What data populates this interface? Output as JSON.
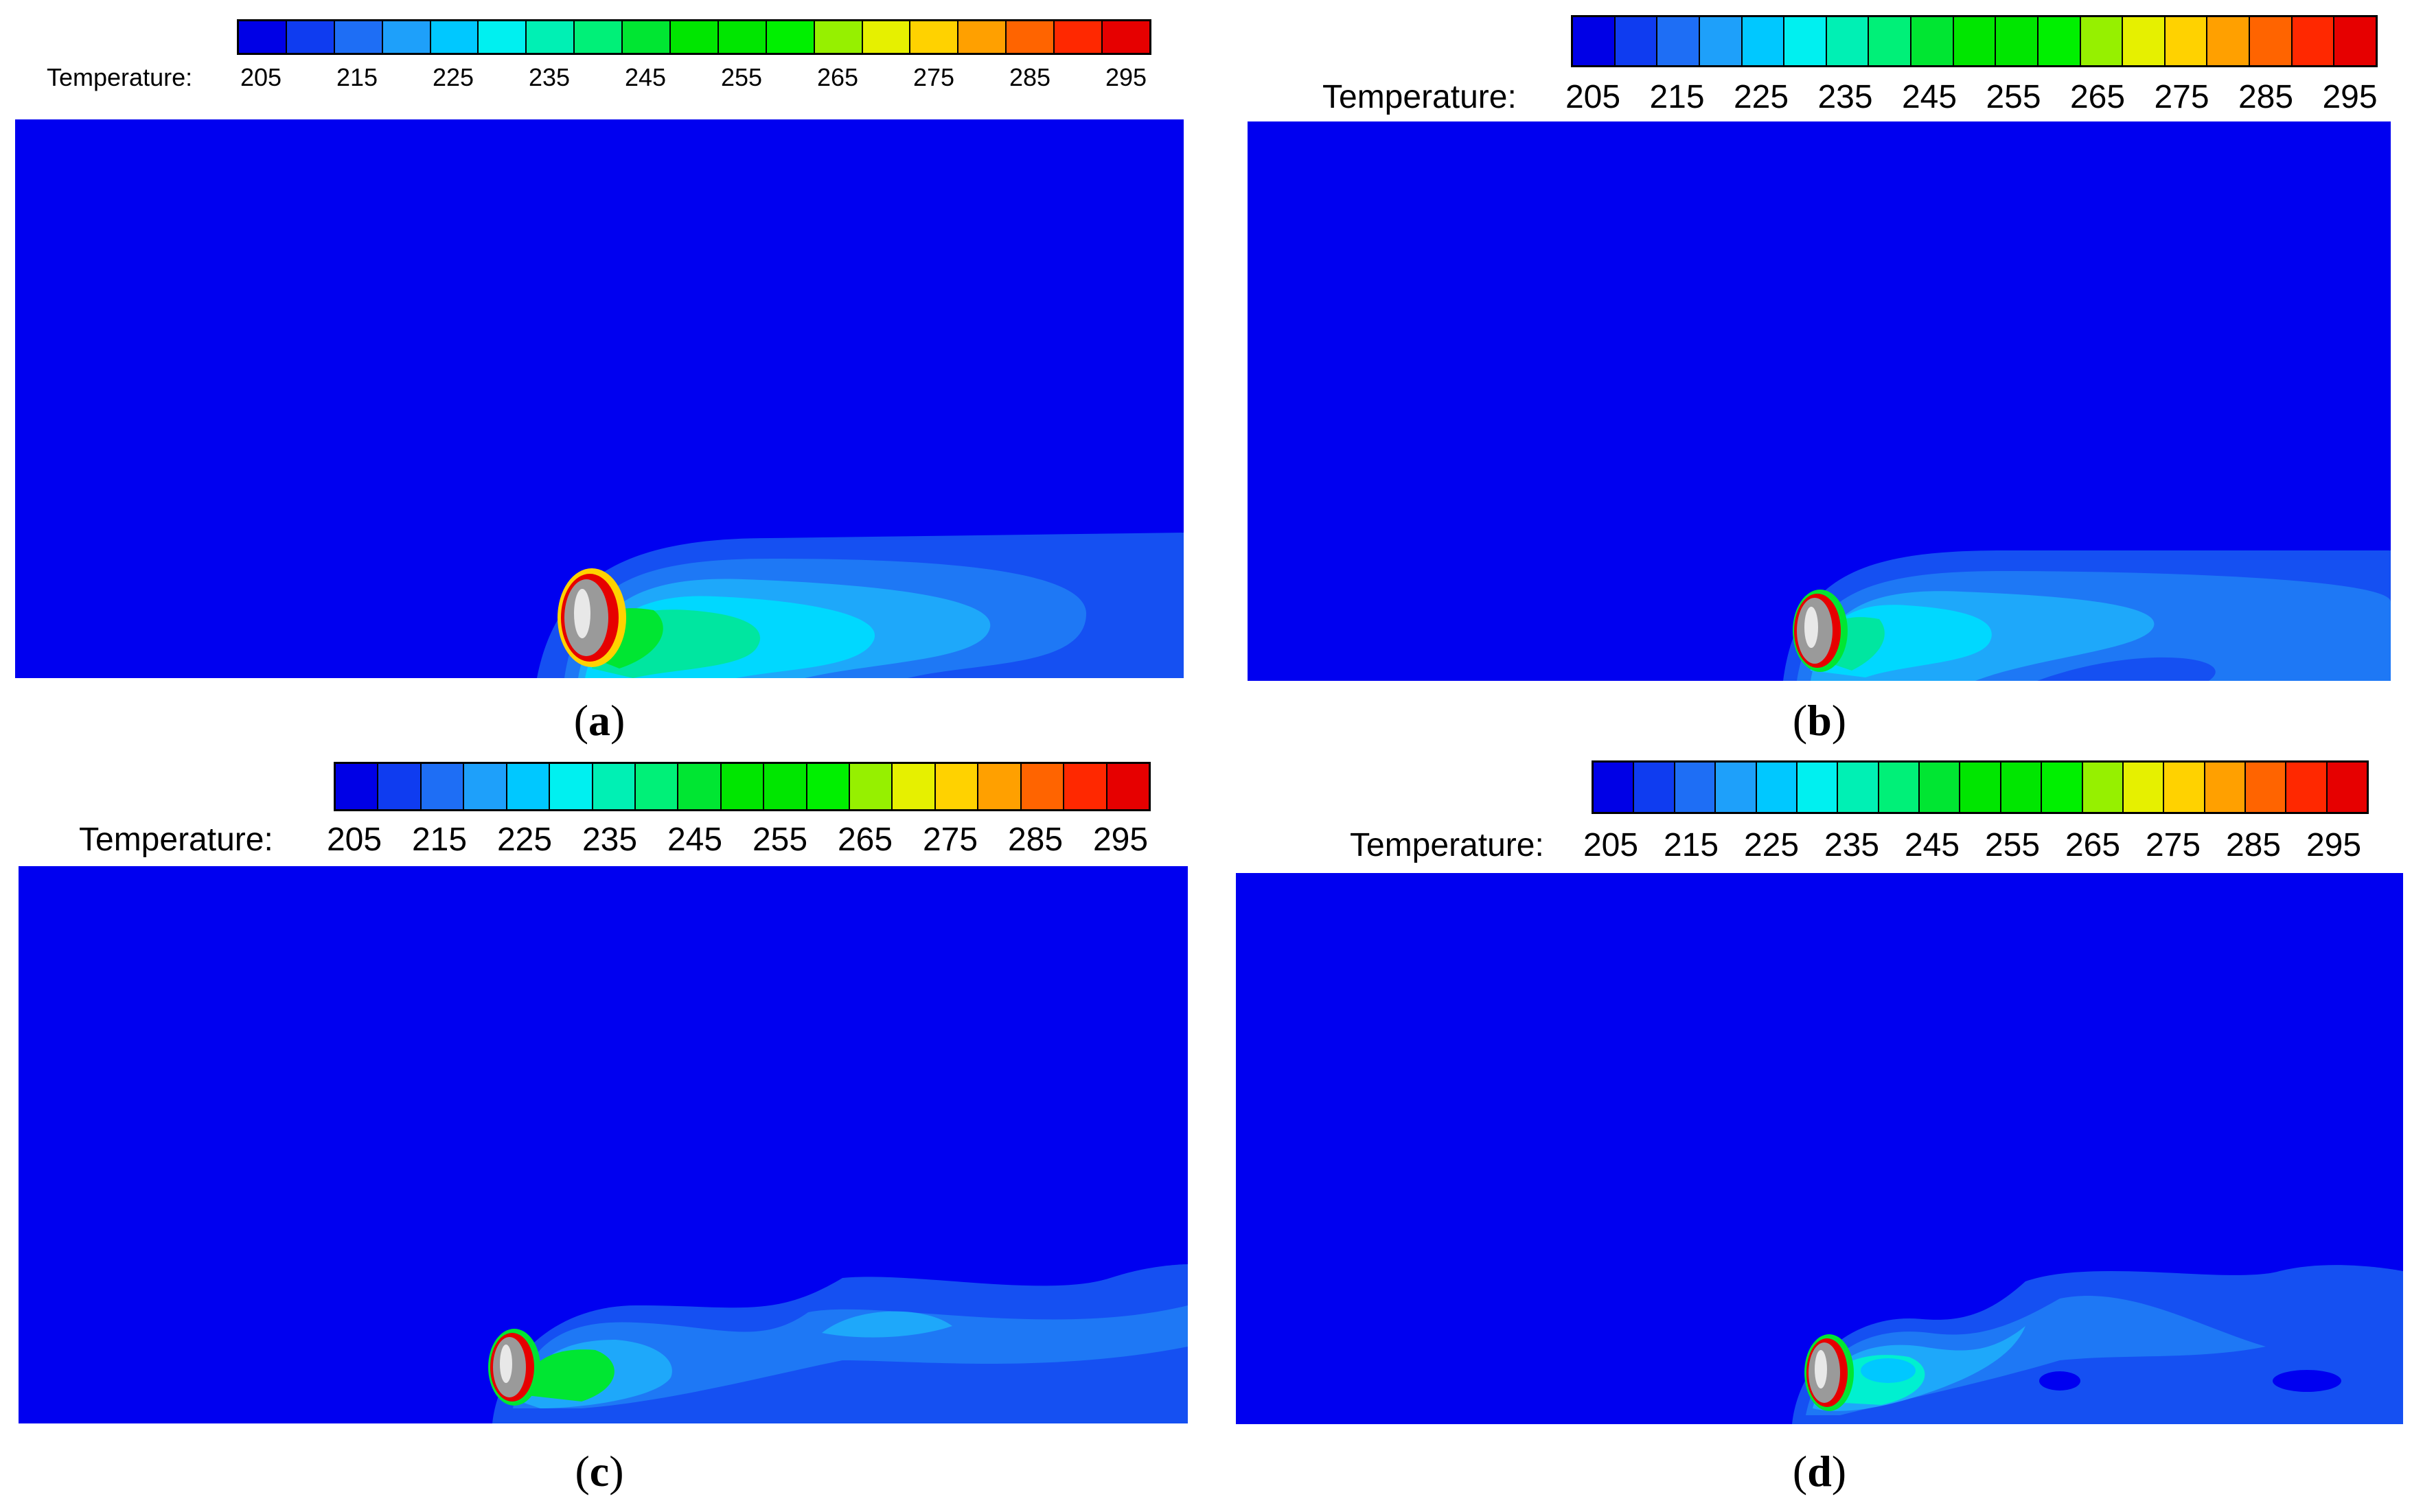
{
  "legend": {
    "label": "Temperature:",
    "ticks": [
      "205",
      "215",
      "225",
      "235",
      "245",
      "255",
      "265",
      "275",
      "285",
      "295"
    ],
    "colors": [
      "#0000e6",
      "#0f3cf0",
      "#1e6ef5",
      "#1ea0fa",
      "#00c8ff",
      "#00f0f0",
      "#00f0b4",
      "#00f078",
      "#00e632",
      "#00e600",
      "#00e600",
      "#00f000",
      "#96f000",
      "#e6f000",
      "#ffd200",
      "#ffa000",
      "#ff6400",
      "#ff2800",
      "#e60000"
    ]
  },
  "colors": {
    "background": "#0000f0",
    "body_edge": "#e60000",
    "body_metal": "#9a9a9a"
  },
  "panels": [
    {
      "letter": "a",
      "open": "(",
      "close": ")"
    },
    {
      "letter": "b",
      "open": "(",
      "close": ")"
    },
    {
      "letter": "c",
      "open": "(",
      "close": ")"
    },
    {
      "letter": "d",
      "open": "(",
      "close": ")"
    }
  ]
}
